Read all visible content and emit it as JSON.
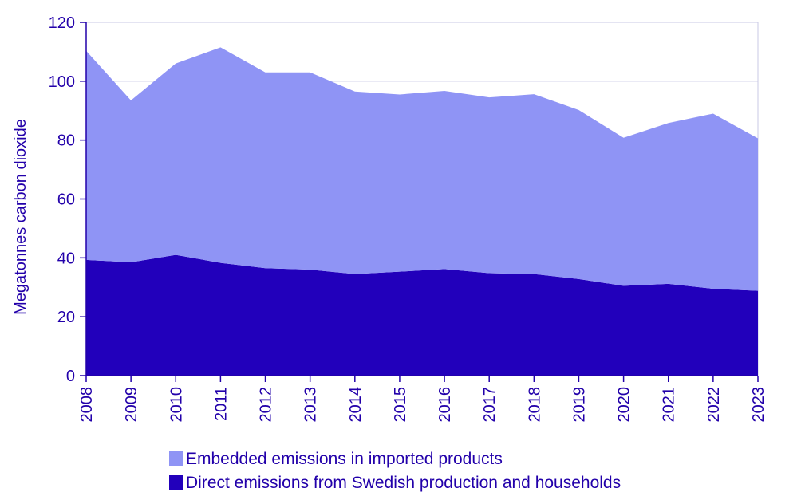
{
  "chart_data": {
    "type": "area",
    "stacked": true,
    "categories": [
      "2008",
      "2009",
      "2010",
      "2011",
      "2012",
      "2013",
      "2014",
      "2015",
      "2016",
      "2017",
      "2018",
      "2019",
      "2020",
      "2021",
      "2022",
      "2023"
    ],
    "ylabel": "Megatonnes carbon dioxide",
    "xlabel": "",
    "title": "",
    "ylim": [
      0,
      120
    ],
    "yticks": [
      0,
      20,
      40,
      60,
      80,
      100,
      120
    ],
    "grid": true,
    "legend_position": "bottom",
    "series": [
      {
        "name": "Direct emissions from Swedish production and households",
        "color": "#2200bb",
        "values": [
          39.3,
          38.5,
          41.0,
          38.3,
          36.5,
          36.0,
          34.5,
          35.3,
          36.2,
          34.8,
          34.5,
          32.8,
          30.5,
          31.2,
          29.5,
          28.8
        ]
      },
      {
        "name": "Embedded emissions in imported products",
        "color": "#8f94f5",
        "values": [
          71.0,
          55.0,
          65.0,
          73.2,
          66.5,
          67.0,
          62.0,
          60.2,
          60.5,
          59.7,
          61.1,
          57.4,
          50.3,
          54.6,
          59.5,
          51.8
        ]
      }
    ],
    "legend_order": [
      1,
      0
    ]
  }
}
